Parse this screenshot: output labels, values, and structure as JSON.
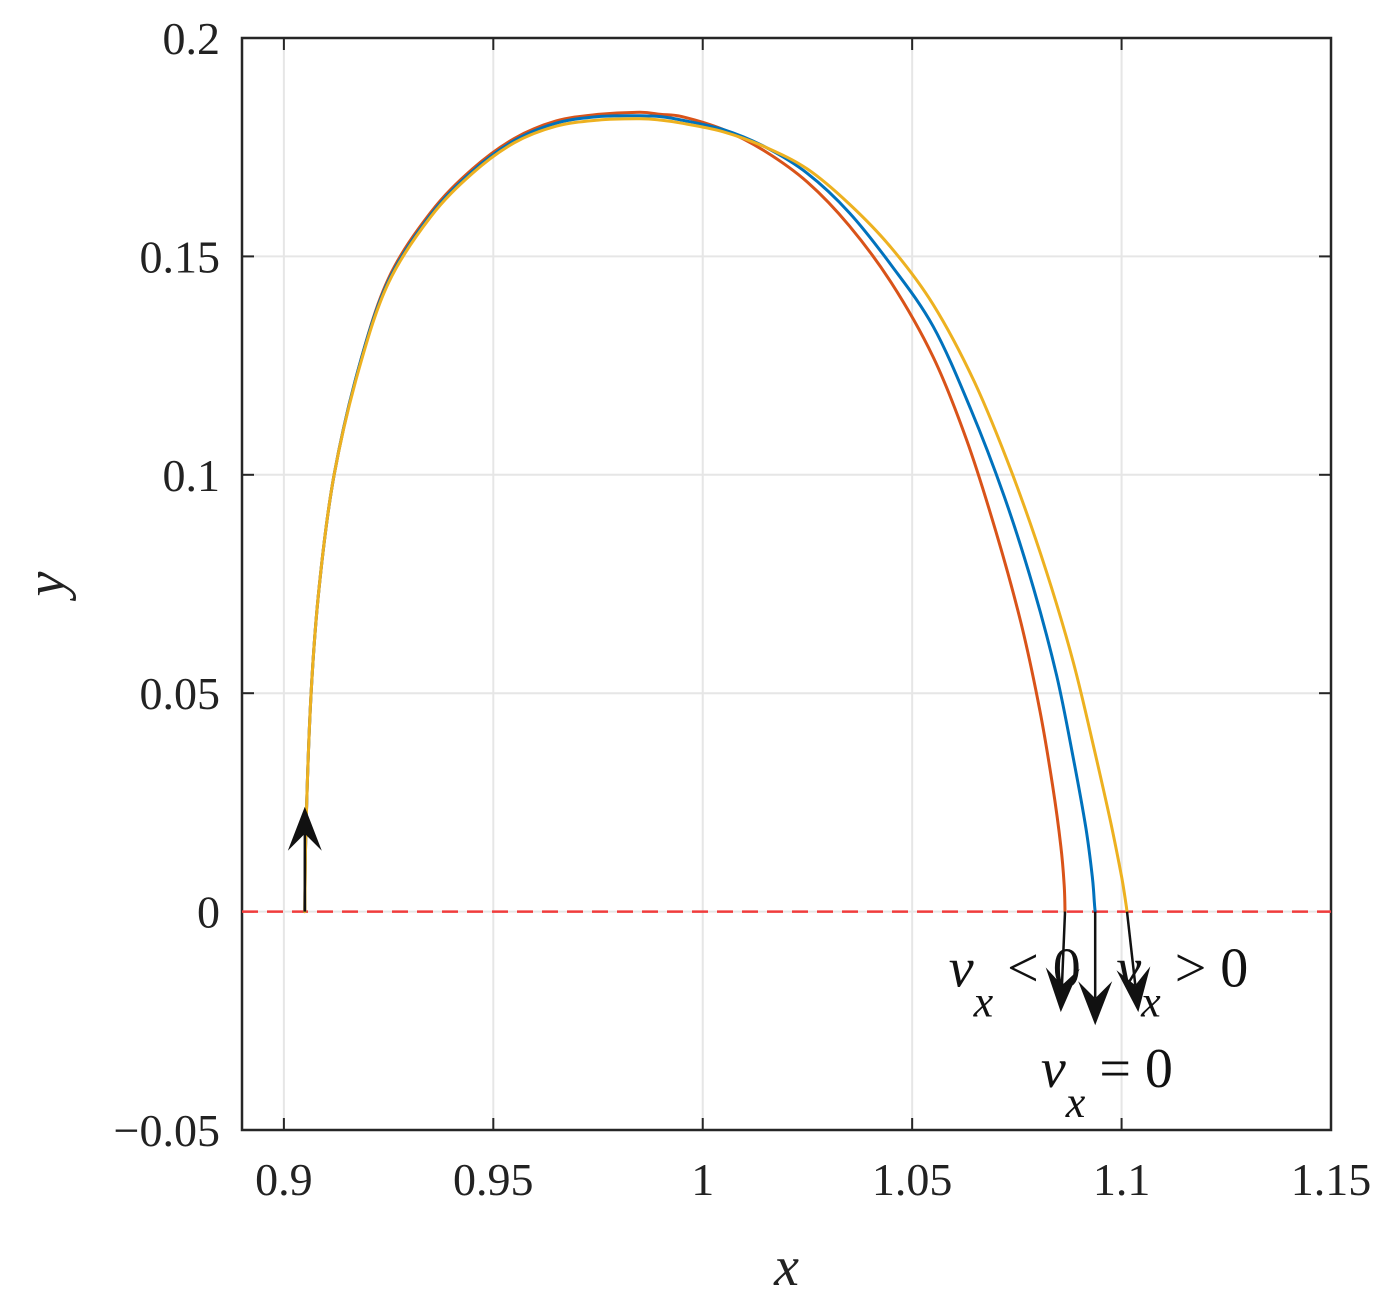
{
  "chart_data": {
    "type": "line",
    "xlabel": "x",
    "ylabel": "y",
    "xlim": [
      0.89,
      1.15
    ],
    "ylim": [
      -0.05,
      0.2
    ],
    "xticks": [
      0.9,
      0.95,
      1,
      1.05,
      1.1,
      1.15
    ],
    "xtick_labels": [
      "0.9",
      "0.95",
      "1",
      "1.05",
      "1.1",
      "1.15"
    ],
    "yticks": [
      -0.05,
      0,
      0.05,
      0.1,
      0.15,
      0.2
    ],
    "ytick_labels": [
      "−0.05",
      "0",
      "0.05",
      "0.1",
      "0.15",
      "0.2"
    ],
    "grid": true,
    "series": [
      {
        "color": "#D95319",
        "x": [
          0.905,
          0.9053,
          0.9065,
          0.9085,
          0.912,
          0.918,
          0.925,
          0.935,
          0.945,
          0.955,
          0.965,
          0.975,
          0.985,
          0.99,
          0.995,
          1.005,
          1.015,
          1.025,
          1.035,
          1.045,
          1.055,
          1.063,
          1.07,
          1.076,
          1.0805,
          1.0835,
          1.0855,
          1.0863,
          1.0865
        ],
        "y": [
          0.0,
          0.02,
          0.05,
          0.075,
          0.1,
          0.125,
          0.145,
          0.16,
          0.17,
          0.177,
          0.181,
          0.1825,
          0.183,
          0.1825,
          0.182,
          0.179,
          0.174,
          0.167,
          0.157,
          0.144,
          0.127,
          0.108,
          0.087,
          0.066,
          0.046,
          0.029,
          0.015,
          0.006,
          0.0
        ]
      },
      {
        "color": "#0072BD",
        "x": [
          0.905,
          0.9053,
          0.9065,
          0.9085,
          0.912,
          0.918,
          0.925,
          0.935,
          0.945,
          0.955,
          0.965,
          0.975,
          0.985,
          0.99,
          0.995,
          1.005,
          1.015,
          1.025,
          1.035,
          1.045,
          1.055,
          1.064,
          1.072,
          1.079,
          1.0845,
          1.0885,
          1.0915,
          1.093,
          1.0935,
          1.0937
        ],
        "y": [
          0.0,
          0.02,
          0.05,
          0.075,
          0.1,
          0.125,
          0.1445,
          0.1595,
          0.1695,
          0.1765,
          0.1805,
          0.182,
          0.1822,
          0.182,
          0.1812,
          0.179,
          0.175,
          0.169,
          0.16,
          0.148,
          0.134,
          0.115,
          0.095,
          0.074,
          0.054,
          0.035,
          0.019,
          0.008,
          0.002,
          0.0
        ]
      },
      {
        "color": "#EDB120",
        "x": [
          0.905,
          0.9053,
          0.9065,
          0.9085,
          0.912,
          0.918,
          0.925,
          0.935,
          0.945,
          0.955,
          0.965,
          0.975,
          0.985,
          0.99,
          0.995,
          1.005,
          1.015,
          1.025,
          1.035,
          1.045,
          1.055,
          1.065,
          1.074,
          1.082,
          1.0885,
          1.0935,
          1.0975,
          1.1,
          1.101,
          1.1013
        ],
        "y": [
          0.0,
          0.02,
          0.05,
          0.075,
          0.1,
          0.1245,
          0.144,
          0.159,
          0.169,
          0.176,
          0.1798,
          0.1812,
          0.1815,
          0.1812,
          0.1805,
          0.1785,
          0.175,
          0.17,
          0.162,
          0.152,
          0.139,
          0.121,
          0.1,
          0.078,
          0.057,
          0.037,
          0.02,
          0.008,
          0.002,
          0.0
        ]
      }
    ],
    "reference_line": {
      "y": 0,
      "color": "#F03C3C",
      "style": "dashed"
    },
    "arrows": [
      {
        "x": 0.905,
        "y_from": 0.0,
        "y_to": 0.024,
        "direction": "up"
      },
      {
        "x_from": 1.0865,
        "x_to": 1.0855,
        "y_from": 0.0,
        "y_to": -0.023,
        "direction": "down"
      },
      {
        "x_from": 1.0937,
        "x_to": 1.0937,
        "y_from": 0.0,
        "y_to": -0.026,
        "direction": "down"
      },
      {
        "x_from": 1.1013,
        "x_to": 1.104,
        "y_from": 0.0,
        "y_to": -0.023,
        "direction": "down"
      }
    ],
    "annotations": [
      {
        "x": 1.0745,
        "y": -0.013,
        "variable": "v",
        "subscript": "x",
        "relation": " < 0"
      },
      {
        "x": 1.1145,
        "y": -0.013,
        "variable": "v",
        "subscript": "x",
        "relation": " > 0"
      },
      {
        "x": 1.0965,
        "y": -0.036,
        "variable": "v",
        "subscript": "x",
        "relation": " = 0"
      }
    ]
  }
}
